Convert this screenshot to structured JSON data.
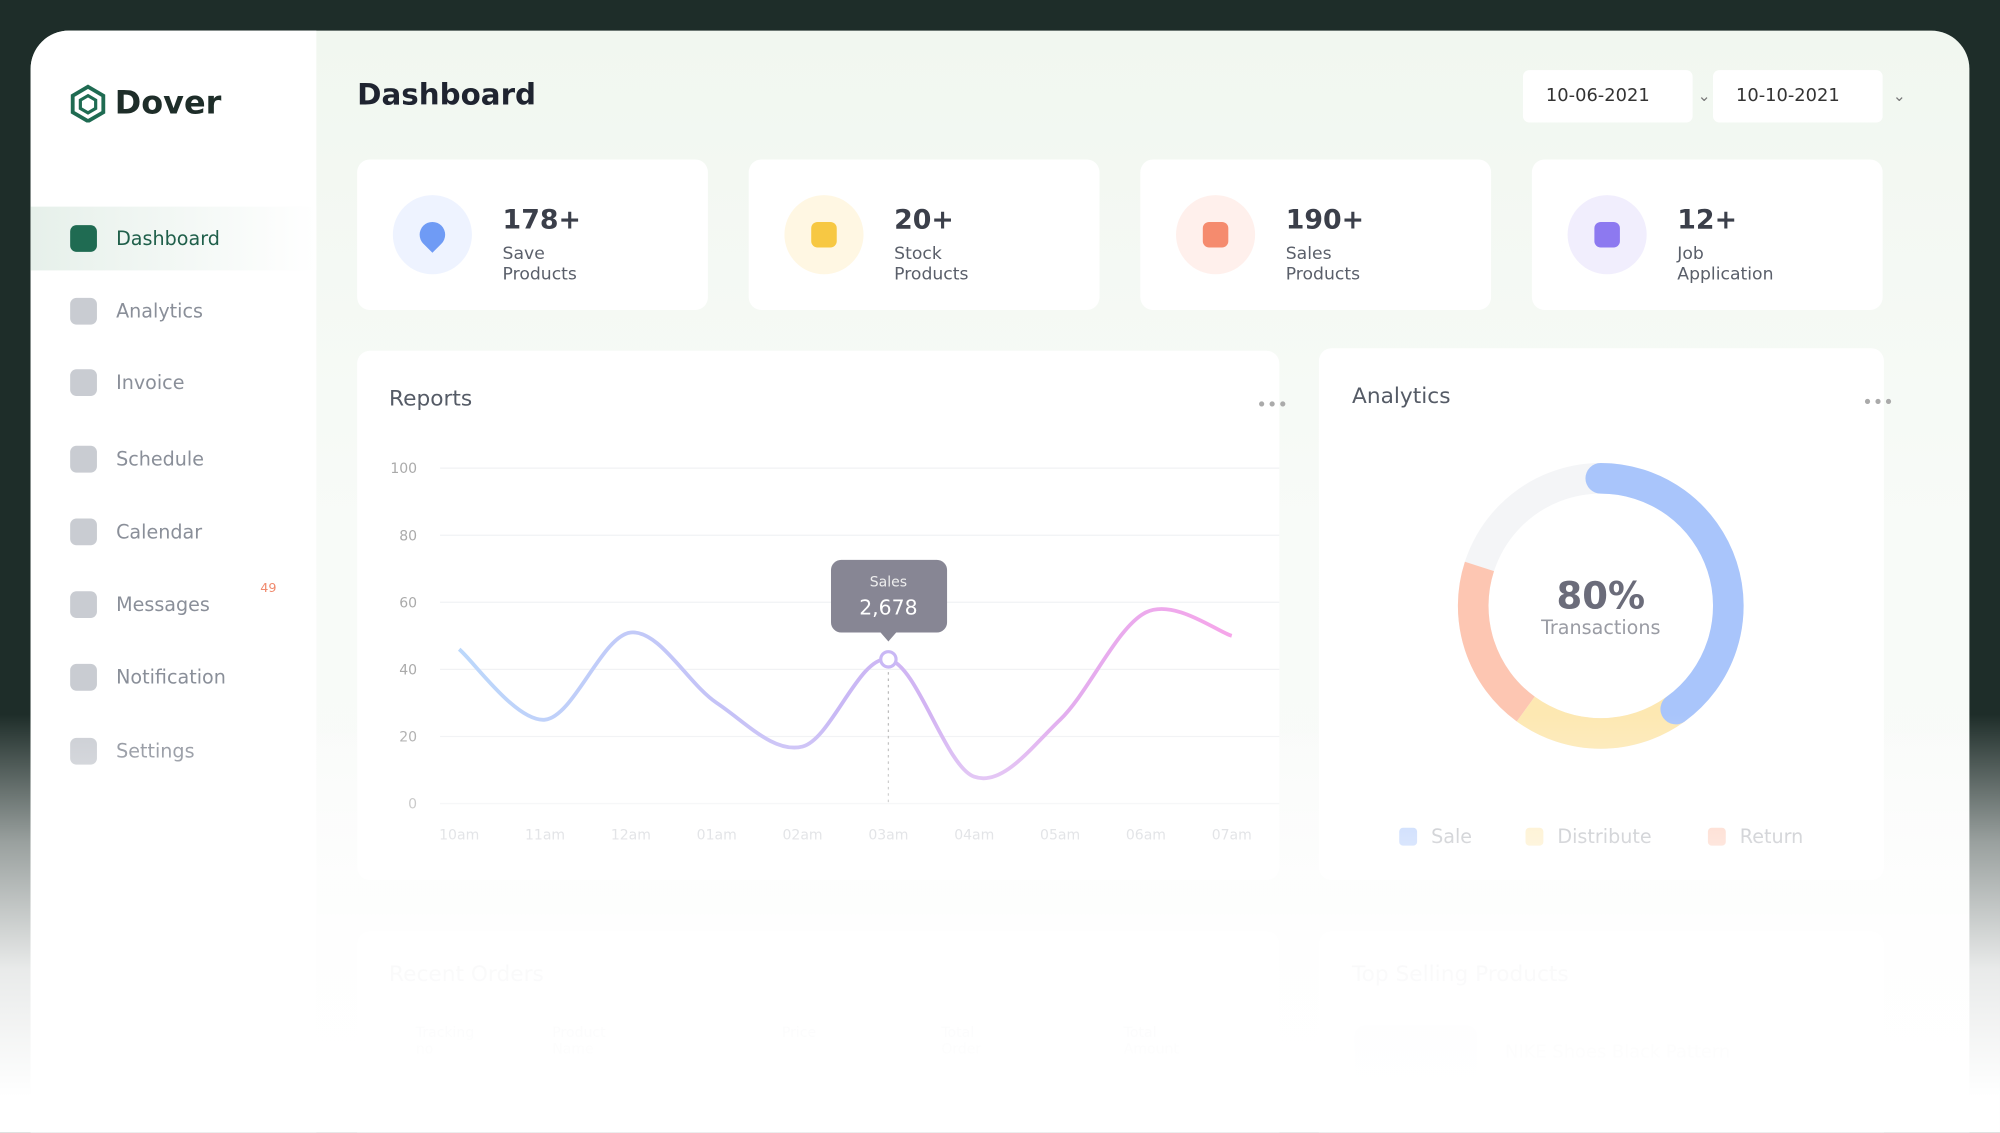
{
  "brand": "Dover",
  "nav": [
    {
      "label": "Dashboard"
    },
    {
      "label": "Analytics"
    },
    {
      "label": "Invoice"
    },
    {
      "label": "Schedule"
    },
    {
      "label": "Calendar"
    },
    {
      "label": "Messages",
      "badge": 49
    },
    {
      "label": "Notification"
    },
    {
      "label": "Settings"
    }
  ],
  "header": {
    "title": "Dashboard",
    "date_from": "10-06-2021",
    "date_to": "10-10-2021"
  },
  "stats": [
    {
      "value": "178+",
      "label": "Save Products"
    },
    {
      "value": "20+",
      "label": "Stock Products"
    },
    {
      "value": "190+",
      "label": "Sales Products"
    },
    {
      "value": "12+",
      "label": "Job Application"
    }
  ],
  "chart_data": [
    {
      "type": "line",
      "title": "Reports",
      "categories": [
        "10am",
        "11am",
        "12am",
        "01am",
        "02am",
        "03am",
        "04am",
        "05am",
        "06am",
        "07am"
      ],
      "series": [
        {
          "name": "Sales",
          "color": "#c9b8f5",
          "values": [
            46,
            25,
            51,
            30,
            17,
            43,
            8,
            25,
            57,
            50
          ]
        }
      ],
      "ylim": [
        0,
        100
      ],
      "yticks": [
        0,
        20,
        40,
        60,
        80,
        100
      ],
      "grid": true,
      "tooltip": {
        "value": 2678,
        "label": "2,678"
      }
    },
    {
      "type": "donut",
      "title": "Analytics",
      "categories": [
        "Sale",
        "Distribute",
        "Return"
      ],
      "values": [
        40,
        20,
        20
      ],
      "colors": [
        "#a9c5fb",
        "#fde8b2",
        "#fdc6b2"
      ],
      "center": {
        "value": 80,
        "label": "80%"
      },
      "center_text": "Transactions"
    }
  ],
  "recent_orders": {
    "title": "Recent Orders",
    "columns": [
      "Tracking no",
      "Product Name",
      "Price",
      "Total Order",
      "Total Amount"
    ]
  },
  "top_selling": {
    "title": "Top Selling Products",
    "items": [
      "NIKE Shoes Black Pattern"
    ]
  }
}
